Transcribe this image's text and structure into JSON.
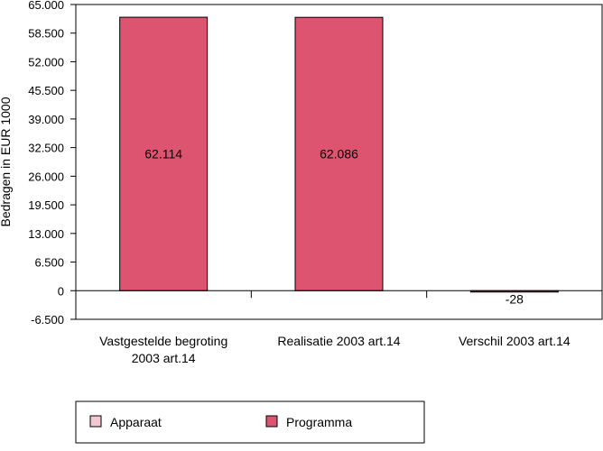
{
  "chart_data": {
    "type": "bar",
    "ylabel": "Bedragen in EUR 1000",
    "ylim": [
      -6500,
      65000
    ],
    "yticks": [
      65000,
      58500,
      52000,
      45500,
      39000,
      32500,
      26000,
      19500,
      13000,
      6500,
      0,
      -6500
    ],
    "ytick_labels": [
      "65.000",
      "58.500",
      "52.000",
      "45.500",
      "39.000",
      "32.500",
      "26.000",
      "19.500",
      "13.000",
      "6.500",
      "0",
      "-6.500"
    ],
    "categories": [
      [
        "Vastgestelde begroting",
        "2003 art.14"
      ],
      [
        "Realisatie 2003 art.14"
      ],
      [
        "Verschil 2003 art.14"
      ]
    ],
    "series": [
      {
        "name": "Apparaat",
        "color": "#f4c6d0",
        "values": [
          0,
          0,
          0
        ]
      },
      {
        "name": "Programma",
        "color": "#dd5470",
        "values": [
          62114,
          62086,
          -28
        ]
      }
    ],
    "data_labels": [
      "62.114",
      "62.086",
      "-28"
    ],
    "grid": false,
    "legend_position": "bottom-left"
  }
}
